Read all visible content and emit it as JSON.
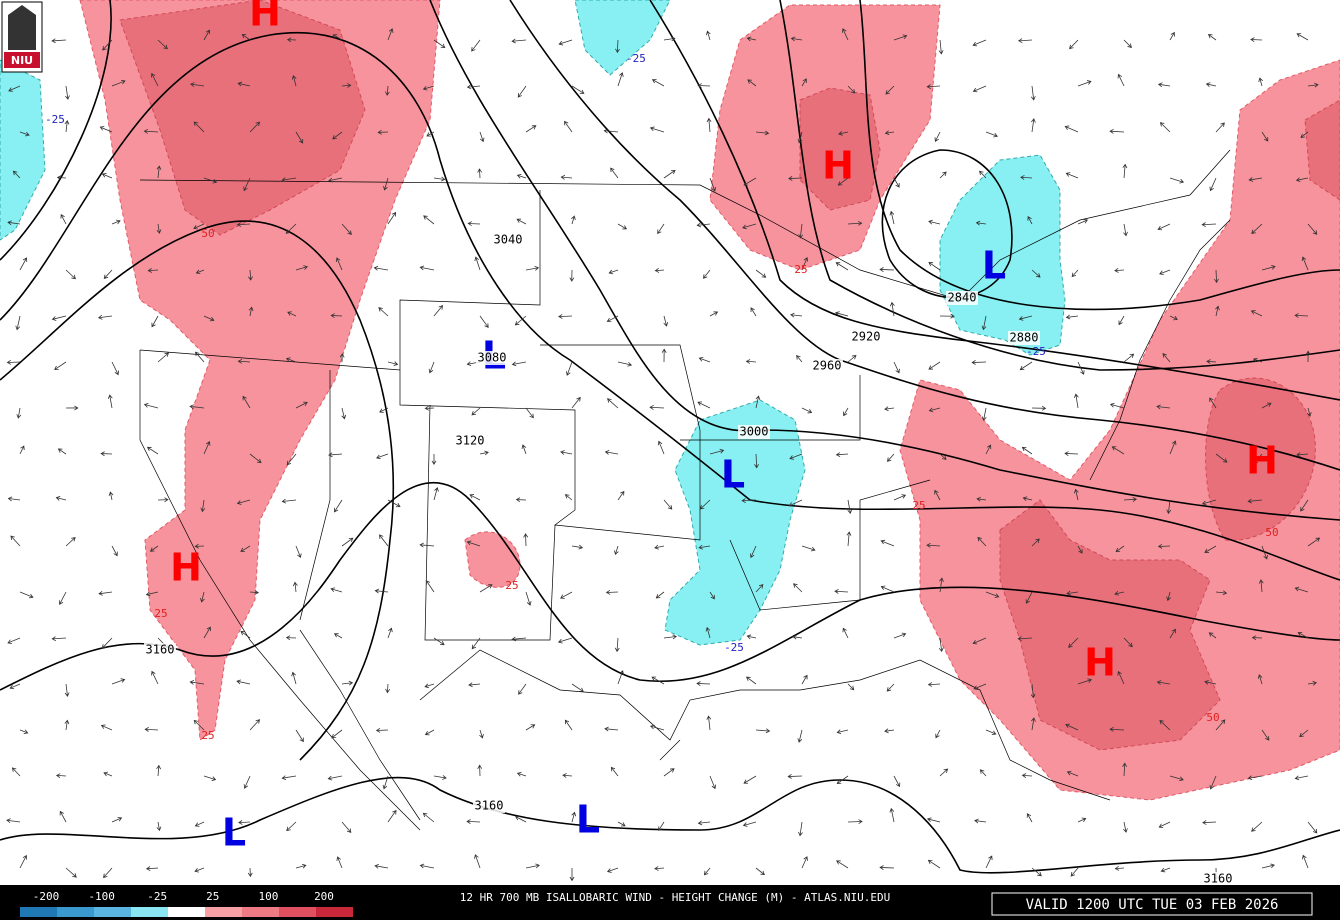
{
  "logo": "NIU",
  "map": {
    "highs": [
      "H",
      "H",
      "H",
      "H",
      "H"
    ],
    "lows": [
      "L",
      "L",
      "L",
      "L",
      "L"
    ],
    "height_labels": [
      3040,
      3080,
      3120,
      3000,
      2960,
      2920,
      2880,
      2840,
      3160,
      3160,
      3160
    ],
    "rise_labels": [
      50,
      25,
      25,
      25,
      25,
      25,
      50,
      50
    ],
    "fall_labels": [
      -25,
      -25,
      -25,
      -25
    ]
  },
  "footer": {
    "scale": [
      -200,
      -100,
      -25,
      25,
      100,
      200
    ],
    "title": "12 HR 700 MB ISALLOBARIC WIND - HEIGHT CHANGE (M) - ATLAS.NIU.EDU",
    "valid": "VALID 1200 UTC TUE 03 FEB 2026"
  }
}
